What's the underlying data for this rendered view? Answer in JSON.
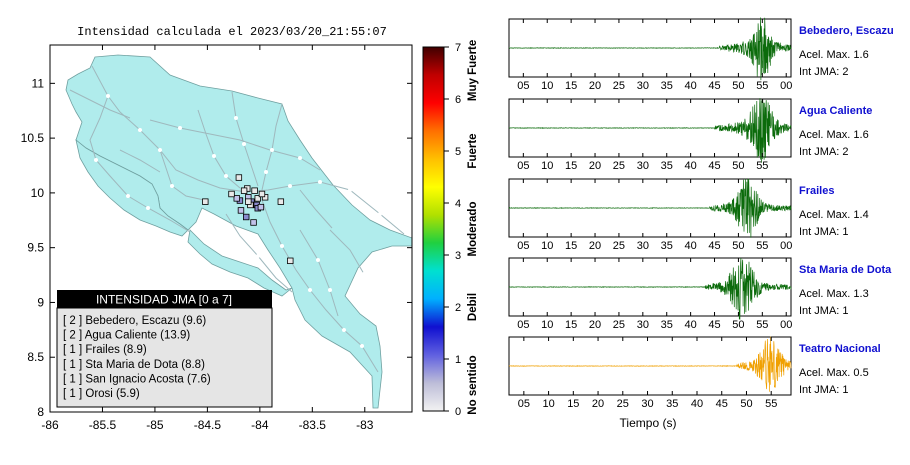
{
  "map": {
    "title": "Intensidad calculada el 2023/03/20_21:55:07",
    "x_ticks": [
      "-86",
      "-85.5",
      "-85",
      "-84.5",
      "-84",
      "-83.5",
      "-83"
    ],
    "y_ticks": [
      "8",
      "8.5",
      "9",
      "9.5",
      "10",
      "10.5",
      "11"
    ],
    "land_color": "#b0ecec",
    "station_colors": {
      "level2": "#8a8acd",
      "level1": "#c2c2ea",
      "level0": "#e9e9e9"
    },
    "stations": [
      {
        "lon": -84.08,
        "lat": 9.92,
        "level": 2
      },
      {
        "lon": -84.03,
        "lat": 9.89,
        "level": 2
      },
      {
        "lon": -84.19,
        "lat": 9.93,
        "level": 2
      },
      {
        "lon": -84.13,
        "lat": 9.78,
        "level": 2
      },
      {
        "lon": -84.02,
        "lat": 9.86,
        "level": 2
      },
      {
        "lon": -84.18,
        "lat": 9.84,
        "level": 1
      },
      {
        "lon": -84.11,
        "lat": 9.96,
        "level": 1
      },
      {
        "lon": -84.06,
        "lat": 9.73,
        "level": 1
      },
      {
        "lon": -83.99,
        "lat": 9.87,
        "level": 1
      },
      {
        "lon": -84.22,
        "lat": 9.95,
        "level": 1
      },
      {
        "lon": -84.2,
        "lat": 10.14,
        "level": 0
      },
      {
        "lon": -84.12,
        "lat": 10.04,
        "level": 0
      },
      {
        "lon": -84.05,
        "lat": 10.02,
        "level": 0
      },
      {
        "lon": -84.15,
        "lat": 10.02,
        "level": 0
      },
      {
        "lon": -83.95,
        "lat": 9.96,
        "level": 0
      },
      {
        "lon": -84.27,
        "lat": 9.99,
        "level": 0
      },
      {
        "lon": -84.02,
        "lat": 9.95,
        "level": 0
      },
      {
        "lon": -83.98,
        "lat": 9.99,
        "level": 0
      },
      {
        "lon": -84.09,
        "lat": 9.89,
        "level": 0
      },
      {
        "lon": -84.11,
        "lat": 9.92,
        "level": 0
      },
      {
        "lon": -84.52,
        "lat": 9.92,
        "level": 0
      },
      {
        "lon": -83.8,
        "lat": 9.92,
        "level": 0
      },
      {
        "lon": -83.71,
        "lat": 9.38,
        "level": 0
      }
    ],
    "legend": {
      "title": "INTENSIDAD JMA [0 a 7]",
      "entries": [
        "[ 2 ]  Bebedero, Escazu (9.6)",
        "[ 2 ]  Agua Caliente (13.9)",
        "[ 1 ]  Frailes (8.9)",
        "[ 1 ]  Sta Maria de Dota (8.8)",
        "[ 1 ]  San Ignacio Acosta (7.6)",
        "[ 1 ]  Orosi (5.9)"
      ]
    }
  },
  "colorbar": {
    "ticks": [
      "0",
      "1",
      "2",
      "3",
      "4",
      "5",
      "6",
      "7"
    ],
    "labels": [
      "No sentido",
      "Debil",
      "Moderado",
      "Fuerte",
      "Muy Fuerte"
    ],
    "colors": [
      "#f2f2f2",
      "#bdbdd8",
      "#6060e0",
      "#1010d0",
      "#00b0ff",
      "#00e0d0",
      "#20d040",
      "#b0e000",
      "#ffff00",
      "#ffc000",
      "#ff7000",
      "#ff0000",
      "#c00000",
      "#400000"
    ]
  },
  "waveforms": {
    "xlabel": "Tiempo (s)",
    "panels": [
      {
        "name": "Bebedero, Escazu",
        "acel": "Acel. Max. 1.6",
        "jma": "Int JMA: 2",
        "color": "#0b6b0b",
        "ticks": [
          "05",
          "10",
          "15",
          "20",
          "25",
          "30",
          "35",
          "40",
          "45",
          "50",
          "55",
          "00"
        ],
        "xmin": 2,
        "xmax": 61,
        "onset": 46,
        "peak": 55,
        "amp": 1.0,
        "dur": 6
      },
      {
        "name": "Agua Caliente",
        "acel": "Acel. Max. 1.6",
        "jma": "Int JMA: 2",
        "color": "#0b6b0b",
        "ticks": [
          "05",
          "10",
          "15",
          "20",
          "25",
          "30",
          "35",
          "40",
          "45",
          "50",
          "55"
        ],
        "xmin": 2,
        "xmax": 61,
        "onset": 45,
        "peak": 55,
        "amp": 1.0,
        "dur": 7
      },
      {
        "name": "Frailes",
        "acel": "Acel. Max. 1.4",
        "jma": "Int JMA: 1",
        "color": "#0b6b0b",
        "ticks": [
          "05",
          "10",
          "15",
          "20",
          "25",
          "30",
          "35",
          "40",
          "45",
          "50",
          "55",
          "00"
        ],
        "xmin": 2,
        "xmax": 61,
        "onset": 44,
        "peak": 52,
        "amp": 1.0,
        "dur": 6
      },
      {
        "name": "Sta Maria de Dota",
        "acel": "Acel. Max. 1.3",
        "jma": "Int JMA: 1",
        "color": "#0b6b0b",
        "ticks": [
          "05",
          "10",
          "15",
          "20",
          "25",
          "30",
          "35",
          "40",
          "45",
          "50",
          "55",
          "00"
        ],
        "xmin": 2,
        "xmax": 61,
        "onset": 43,
        "peak": 51,
        "amp": 1.0,
        "dur": 7
      },
      {
        "name": "Teatro Nacional",
        "acel": "Acel. Max. 0.5",
        "jma": "Int JMA: 1",
        "color": "#f0a000",
        "ticks": [
          "05",
          "10",
          "15",
          "20",
          "25",
          "30",
          "35",
          "40",
          "45",
          "50",
          "55"
        ],
        "xmin": 2,
        "xmax": 59,
        "onset": 48,
        "peak": 55,
        "amp": 0.9,
        "dur": 6
      }
    ]
  }
}
